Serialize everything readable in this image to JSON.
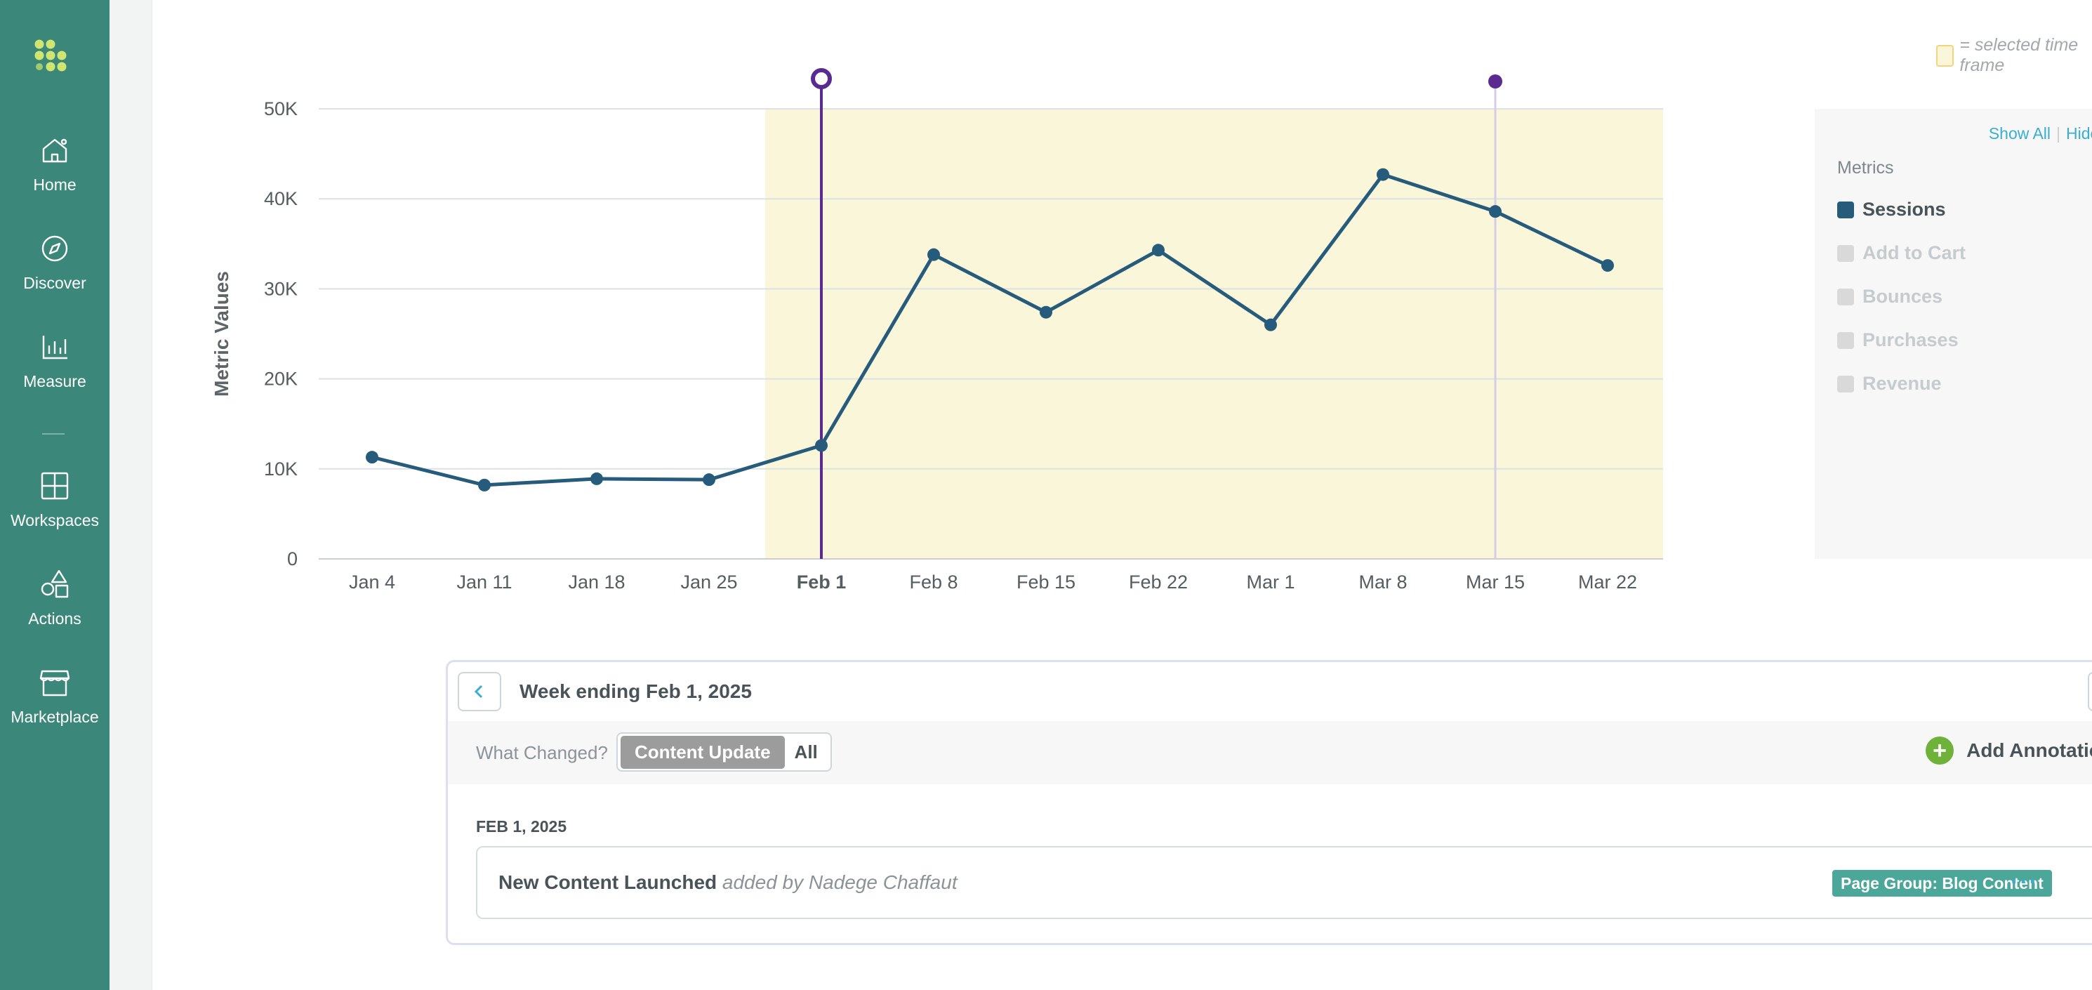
{
  "sidebar": {
    "items": [
      {
        "label": "Home",
        "icon": "home-icon"
      },
      {
        "label": "Discover",
        "icon": "compass-icon"
      },
      {
        "label": "Measure",
        "icon": "bar-chart-icon"
      },
      {
        "label": "Workspaces",
        "icon": "grid-icon"
      },
      {
        "label": "Actions",
        "icon": "shapes-icon"
      },
      {
        "label": "Marketplace",
        "icon": "storefront-icon"
      }
    ]
  },
  "legend": {
    "selected_time_frame": "= selected time frame"
  },
  "metrics_panel": {
    "show_all": "Show All",
    "hide_all": "Hide All",
    "title": "Metrics",
    "metrics": [
      {
        "label": "Sessions",
        "active": true,
        "color": "#265b7c"
      },
      {
        "label": "Add to Cart",
        "active": false,
        "color": "#d9d9d9"
      },
      {
        "label": "Bounces",
        "active": false,
        "color": "#d9d9d9"
      },
      {
        "label": "Purchases",
        "active": false,
        "color": "#d9d9d9"
      },
      {
        "label": "Revenue",
        "active": false,
        "color": "#d9d9d9"
      }
    ]
  },
  "chart_data": {
    "type": "line",
    "ylabel": "Metric Values",
    "ylim": [
      0,
      50000
    ],
    "yticks": [
      {
        "value": 0,
        "label": "0"
      },
      {
        "value": 10000,
        "label": "10K"
      },
      {
        "value": 20000,
        "label": "20K"
      },
      {
        "value": 30000,
        "label": "30K"
      },
      {
        "value": 40000,
        "label": "40K"
      },
      {
        "value": 50000,
        "label": "50K"
      }
    ],
    "categories": [
      "Jan 4",
      "Jan 11",
      "Jan 18",
      "Jan 25",
      "Feb 1",
      "Feb 8",
      "Feb 15",
      "Feb 22",
      "Mar 1",
      "Mar 8",
      "Mar 15",
      "Mar 22"
    ],
    "series": [
      {
        "name": "Sessions",
        "color": "#265b7c",
        "values": [
          11300,
          8200,
          8900,
          8800,
          12600,
          33800,
          27400,
          34300,
          26000,
          42700,
          38600,
          32600
        ]
      }
    ],
    "selected_range": {
      "start": "Jan 25",
      "end": "Mar 22",
      "color": "#faf6d9"
    },
    "markers": [
      {
        "at": "Feb 1",
        "style": "selected",
        "color": "#5b2a91"
      },
      {
        "at": "Mar 15",
        "style": "annotation",
        "color": "#5b2a91"
      }
    ],
    "grid": true
  },
  "annotations": {
    "week_title": "Week ending Feb 1, 2025",
    "what_changed_label": "What Changed?",
    "toggle": {
      "active": "Content Update",
      "inactive": "All"
    },
    "add_annotation": "Add Annotation",
    "date": "FEB 1, 2025",
    "item": {
      "title": "New Content Launched",
      "added_by": "added by Nadege Chaffaut",
      "badge": "Page Group: Blog Content",
      "more": "···"
    }
  }
}
